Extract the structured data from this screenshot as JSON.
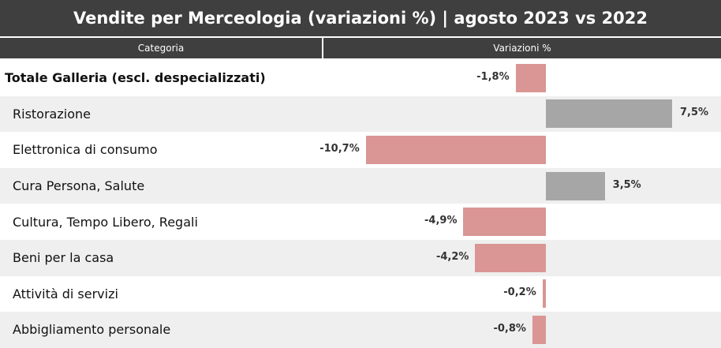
{
  "title": "Vendite per Merceologia (variazioni %) | agosto 2023 vs 2022",
  "headers": {
    "category": "Categoria",
    "variation": "Variazioni %"
  },
  "colors": {
    "negative": "#d99694",
    "positive": "#a6a6a6",
    "header": "#3f3f3f",
    "stripe": "#efefef"
  },
  "chart_data": {
    "type": "bar",
    "orientation": "horizontal",
    "categories": [
      "Totale Galleria (escl. despecializzati)",
      "Ristorazione",
      "Elettronica di consumo",
      "Cura Persona, Salute",
      "Cultura, Tempo Libero, Regali",
      "Beni per la casa",
      "Attività di servizi",
      "Abbigliamento personale"
    ],
    "values": [
      -1.8,
      7.5,
      -10.7,
      3.5,
      -4.9,
      -4.2,
      -0.2,
      -0.8
    ],
    "value_labels": [
      "-1,8%",
      "7,5%",
      "-10,7%",
      "3,5%",
      "-4,9%",
      "-4,2%",
      "-0,2%",
      "-0,8%"
    ],
    "title": "Vendite per Merceologia (variazioni %) | agosto 2023 vs 2022",
    "xlabel": "Variazioni %",
    "ylabel": "Categoria",
    "grid": false,
    "legend": false
  }
}
